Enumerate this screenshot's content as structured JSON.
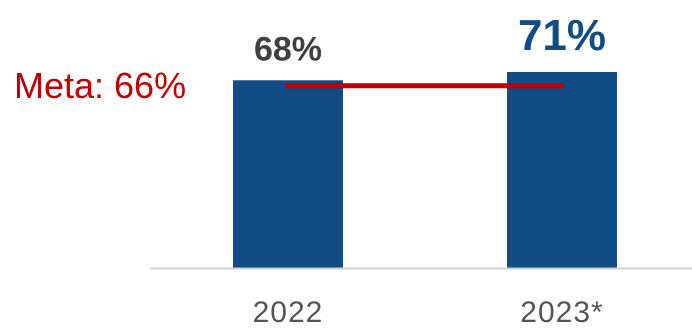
{
  "chart_data": {
    "type": "bar",
    "title": "",
    "xlabel": "",
    "ylabel": "",
    "categories": [
      "2022",
      "2023*"
    ],
    "values": [
      68,
      71
    ],
    "value_labels": [
      "68%",
      "71%"
    ],
    "highlight_index": 1,
    "ylim": [
      0,
      71
    ],
    "grid": false,
    "legend": "none",
    "target": {
      "value": 66,
      "label": "Meta: 66%"
    },
    "colors": {
      "bar": "#114c85",
      "target_line": "#c00000",
      "target_text": "#c00000",
      "baseline": "#d0d0d0",
      "label_default": "#404040",
      "label_highlight": "#114c85",
      "category_text": "#555555"
    }
  }
}
